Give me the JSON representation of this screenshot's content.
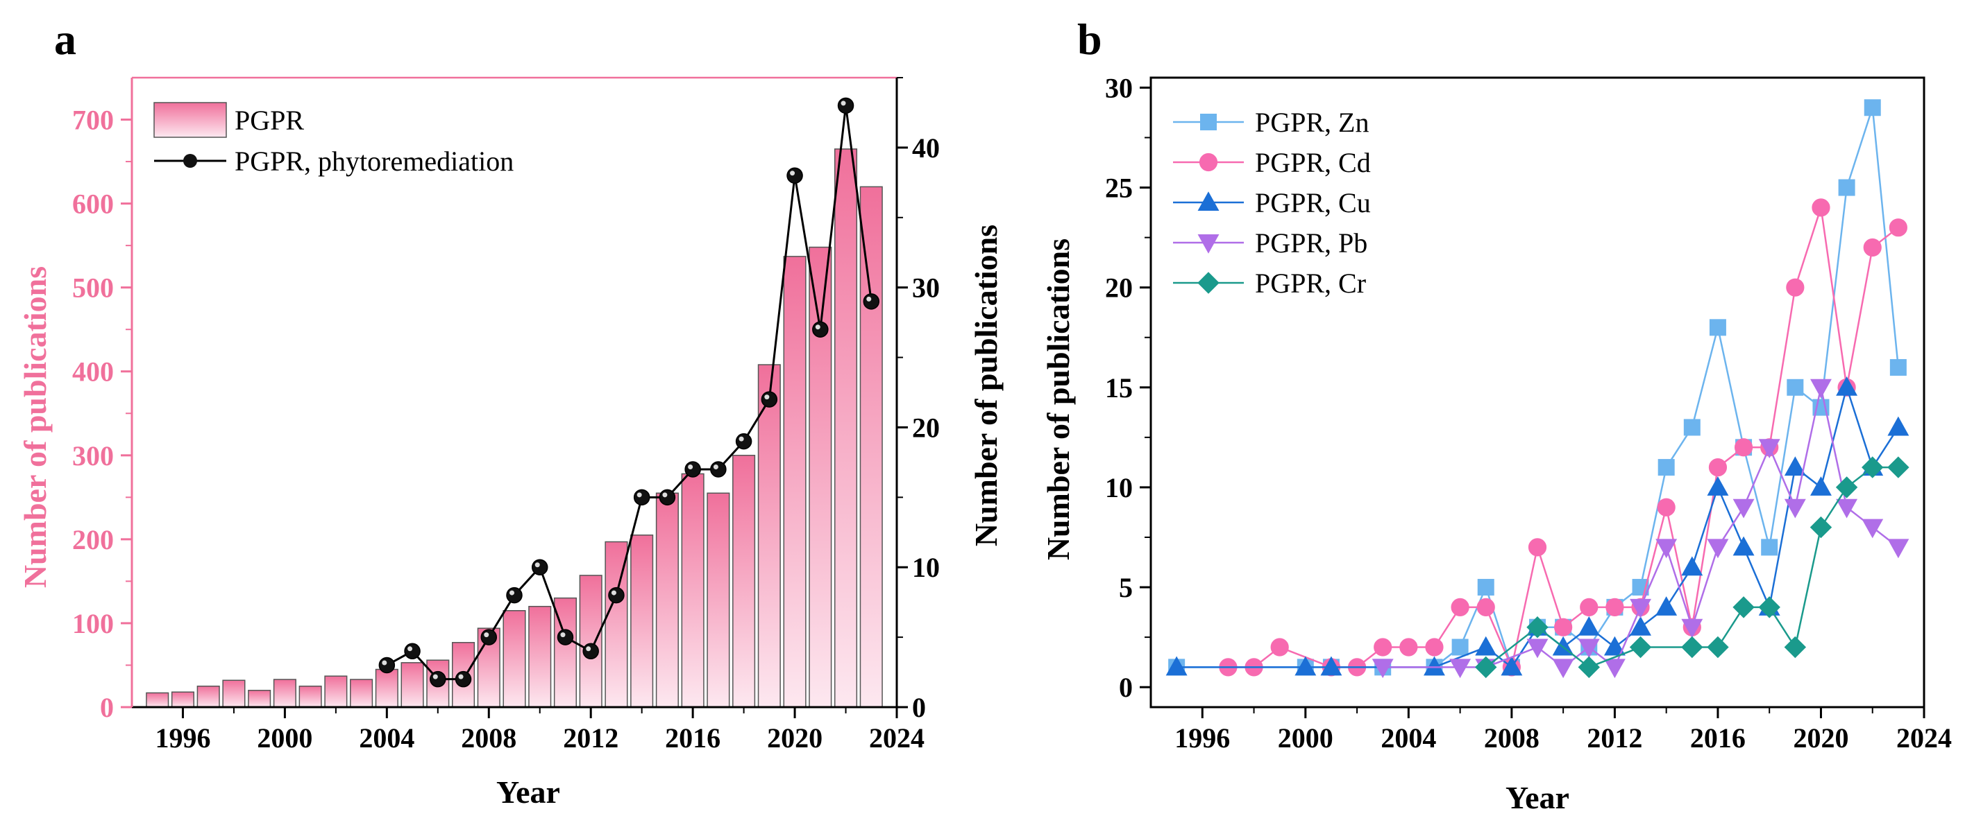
{
  "chart_data": [
    {
      "panel": "a",
      "type": "bar",
      "xlabel": "Year",
      "ylabel": "Number of publications",
      "ylabel_right": "Number of publications",
      "xlim": [
        1994,
        2024
      ],
      "ylim": [
        0,
        750
      ],
      "ylim_right": [
        0,
        45
      ],
      "xticks": [
        1996,
        2000,
        2004,
        2008,
        2012,
        2016,
        2020,
        2024
      ],
      "yticks": [
        0,
        100,
        200,
        300,
        400,
        500,
        600,
        700
      ],
      "yticks_right": [
        0,
        10,
        20,
        30,
        40
      ],
      "legend_position": "top-left",
      "colors": {
        "bar_top": "#f0709b",
        "bar_bottom": "#fde8f0",
        "left_axis": "#f0709b",
        "line": "#000000"
      },
      "series": [
        {
          "name": "PGPR",
          "type": "bar",
          "x": [
            1995,
            1996,
            1997,
            1998,
            1999,
            2000,
            2001,
            2002,
            2003,
            2004,
            2005,
            2006,
            2007,
            2008,
            2009,
            2010,
            2011,
            2012,
            2013,
            2014,
            2015,
            2016,
            2017,
            2018,
            2019,
            2020,
            2021,
            2022,
            2023
          ],
          "values": [
            17,
            18,
            25,
            32,
            20,
            33,
            25,
            37,
            33,
            45,
            53,
            56,
            77,
            94,
            115,
            120,
            130,
            157,
            197,
            205,
            255,
            278,
            255,
            300,
            408,
            537,
            548,
            665,
            620
          ]
        },
        {
          "name": "PGPR, phytoremediation",
          "type": "line",
          "axis": "right",
          "x": [
            2004,
            2005,
            2006,
            2007,
            2008,
            2009,
            2010,
            2011,
            2012,
            2013,
            2014,
            2015,
            2016,
            2017,
            2018,
            2019,
            2020,
            2021,
            2022,
            2023
          ],
          "values": [
            3,
            4,
            2,
            2,
            5,
            8,
            10,
            5,
            4,
            8,
            15,
            15,
            17,
            17,
            19,
            22,
            38,
            27,
            43,
            29
          ]
        }
      ]
    },
    {
      "panel": "b",
      "type": "line",
      "xlabel": "Year",
      "ylabel": "Number of publications",
      "xlim": [
        1994,
        2024
      ],
      "ylim": [
        -1,
        30.5
      ],
      "xticks": [
        1996,
        2000,
        2004,
        2008,
        2012,
        2016,
        2020,
        2024
      ],
      "yticks": [
        0,
        5,
        10,
        15,
        20,
        25,
        30
      ],
      "legend_position": "top-left",
      "series": [
        {
          "name": "PGPR, Zn",
          "color": "#6cb4ee",
          "marker": "square",
          "x": [
            1995,
            2000,
            2001,
            2003,
            2005,
            2006,
            2007,
            2008,
            2009,
            2010,
            2011,
            2012,
            2013,
            2014,
            2015,
            2016,
            2017,
            2018,
            2019,
            2020,
            2021,
            2022,
            2023
          ],
          "values": [
            1,
            1,
            1,
            1,
            1,
            2,
            5,
            1,
            3,
            3,
            2,
            4,
            5,
            11,
            13,
            18,
            12,
            7,
            15,
            14,
            25,
            29,
            16
          ]
        },
        {
          "name": "PGPR, Cd",
          "color": "#f76ab0",
          "marker": "circle",
          "x": [
            1997,
            1998,
            1999,
            2001,
            2002,
            2003,
            2004,
            2005,
            2006,
            2007,
            2008,
            2009,
            2010,
            2011,
            2012,
            2013,
            2014,
            2015,
            2016,
            2017,
            2018,
            2019,
            2020,
            2021,
            2022,
            2023
          ],
          "values": [
            1,
            1,
            2,
            1,
            1,
            2,
            2,
            2,
            4,
            4,
            1,
            7,
            3,
            4,
            4,
            4,
            9,
            3,
            11,
            12,
            12,
            20,
            24,
            15,
            22,
            23
          ]
        },
        {
          "name": "PGPR, Cu",
          "color": "#1b6fd6",
          "marker": "triangle-up",
          "x": [
            1995,
            2000,
            2001,
            2005,
            2007,
            2008,
            2009,
            2010,
            2011,
            2012,
            2013,
            2014,
            2015,
            2016,
            2017,
            2018,
            2019,
            2020,
            2021,
            2022,
            2023
          ],
          "values": [
            1,
            1,
            1,
            1,
            2,
            1,
            3,
            2,
            3,
            2,
            3,
            4,
            6,
            10,
            7,
            4,
            11,
            10,
            15,
            11,
            13
          ]
        },
        {
          "name": "PGPR, Pb",
          "color": "#b06ee8",
          "marker": "triangle-down",
          "x": [
            2003,
            2006,
            2007,
            2009,
            2010,
            2011,
            2012,
            2013,
            2014,
            2015,
            2016,
            2017,
            2018,
            2019,
            2020,
            2021,
            2022,
            2023
          ],
          "values": [
            1,
            1,
            1,
            2,
            1,
            2,
            1,
            4,
            7,
            3,
            7,
            9,
            12,
            9,
            15,
            9,
            8,
            7
          ]
        },
        {
          "name": "PGPR, Cr",
          "color": "#1a9a8c",
          "marker": "diamond",
          "x": [
            2007,
            2009,
            2011,
            2013,
            2015,
            2016,
            2017,
            2018,
            2019,
            2020,
            2021,
            2022,
            2023
          ],
          "values": [
            1,
            3,
            1,
            2,
            2,
            2,
            4,
            4,
            2,
            8,
            10,
            11,
            11
          ]
        }
      ]
    }
  ],
  "panels": {
    "a": "a",
    "b": "b"
  }
}
